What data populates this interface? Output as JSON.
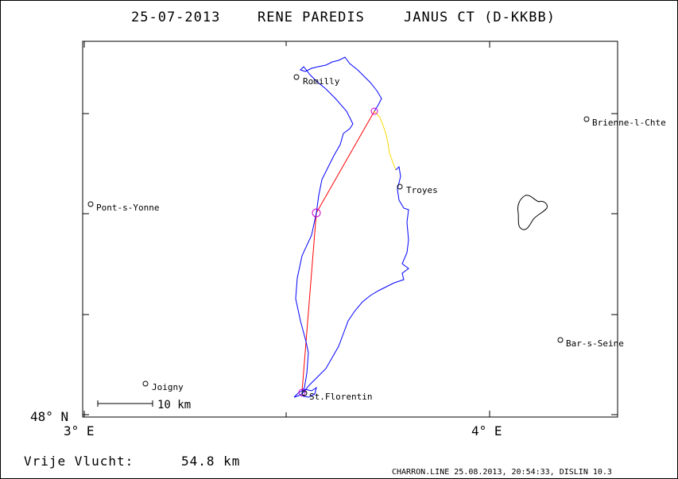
{
  "header": {
    "date": "25-07-2013",
    "pilot": "RENE PAREDIS",
    "glider": "JANUS CT (D-KKBB)"
  },
  "axes": {
    "lat_label": "48° N",
    "lon_labels": [
      "3° E",
      "4° E"
    ]
  },
  "scale_bar": {
    "label": "10 km"
  },
  "towns": [
    {
      "name": "Romilly"
    },
    {
      "name": "Brienne-l-Chte"
    },
    {
      "name": "Troyes"
    },
    {
      "name": "Pont-s-Yonne"
    },
    {
      "name": "Bar-s-Seine"
    },
    {
      "name": "Joigny"
    },
    {
      "name": "St.Florentin"
    }
  ],
  "footer": {
    "distance_label": "Vrije Vlucht:",
    "distance_value": "54.8 km",
    "credit": "CHARRON.LINE 25.08.2013, 20:54:33, DISLIN 10.3"
  },
  "colors": {
    "track": "#0000ff",
    "track_segment_alt": "#ffd700",
    "task_line": "#ff0000",
    "turnpoint": "#cc00cc",
    "frame": "#000000"
  }
}
